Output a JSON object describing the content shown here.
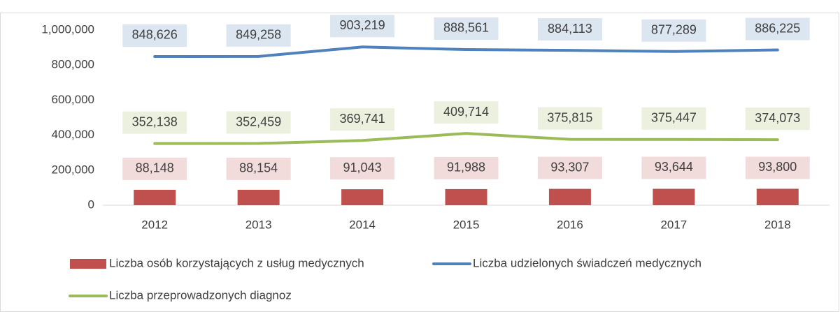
{
  "chart_data": {
    "type": "combo",
    "categories": [
      "2012",
      "2013",
      "2014",
      "2015",
      "2016",
      "2017",
      "2018"
    ],
    "series": [
      {
        "name": "Liczba osób korzystających z usług medycznych",
        "type": "bar",
        "color": "#c0504d",
        "label_color": "#f2dcdb",
        "values": [
          88148,
          88154,
          91043,
          91988,
          93307,
          93644,
          93800
        ],
        "value_labels": [
          "88,148",
          "88,154",
          "91,043",
          "91,988",
          "93,307",
          "93,644",
          "93,800"
        ]
      },
      {
        "name": "Liczba udzielonych świadczeń medycznych",
        "type": "line",
        "color": "#4f81bd",
        "label_color": "#dce6f1",
        "values": [
          848626,
          849258,
          903219,
          888561,
          884113,
          877289,
          886225
        ],
        "value_labels": [
          "848,626",
          "849,258",
          "903,219",
          "888,561",
          "884,113",
          "877,289",
          "886,225"
        ]
      },
      {
        "name": "Liczba przeprowadzonych diagnoz",
        "type": "line",
        "color": "#9bbb59",
        "label_color": "#ebf1de",
        "values": [
          352138,
          352459,
          369741,
          409714,
          375815,
          375447,
          374073
        ],
        "value_labels": [
          "352,138",
          "352,459",
          "369,741",
          "409,714",
          "375,815",
          "375,447",
          "374,073"
        ]
      }
    ],
    "ylim": [
      0,
      1000000
    ],
    "yticks": [
      0,
      {
        "value": 200000,
        "label": "200,000"
      },
      {
        "value": 400000,
        "label": "400,000"
      },
      {
        "value": 600000,
        "label": "600,000"
      },
      {
        "value": 800000,
        "label": "800,000"
      },
      {
        "value": 1000000,
        "label": "1,000,000"
      }
    ],
    "grid": false
  }
}
